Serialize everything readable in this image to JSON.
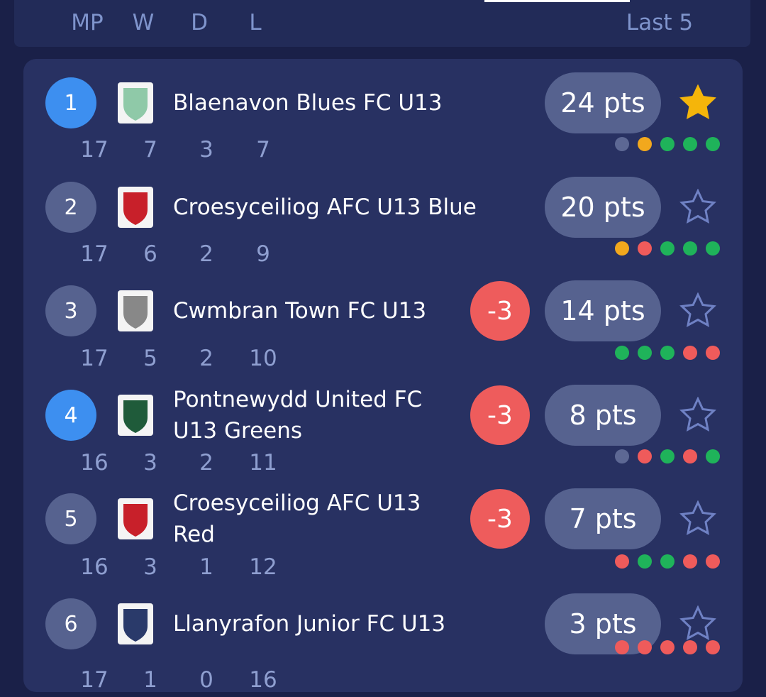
{
  "header": {
    "columns": [
      "MP",
      "W",
      "D",
      "L"
    ],
    "last5": "Last 5"
  },
  "rows": [
    {
      "position": "1",
      "team": "Blaenavon Blues FC U13",
      "points": "24 pts",
      "stats": [
        "17",
        "7",
        "3",
        "7"
      ],
      "form": [
        "#5d6894",
        "#f2a81d",
        "#1fb35a",
        "#1fb35a",
        "#1fb35a"
      ],
      "highlighted": true,
      "favourite": true
    },
    {
      "position": "2",
      "team": "Croesyceiliog AFC U13 Blue",
      "points": "20 pts",
      "stats": [
        "17",
        "6",
        "2",
        "9"
      ],
      "form": [
        "#f2a81d",
        "#ef5b5b",
        "#1fb35a",
        "#1fb35a",
        "#1fb35a"
      ],
      "highlighted": false,
      "favourite": false
    },
    {
      "position": "3",
      "team": "Cwmbran Town FC U13",
      "deduction": "-3",
      "points": "14 pts",
      "stats": [
        "17",
        "5",
        "2",
        "10"
      ],
      "form": [
        "#1fb35a",
        "#1fb35a",
        "#1fb35a",
        "#ef5b5b",
        "#ef5b5b"
      ],
      "highlighted": false,
      "favourite": false
    },
    {
      "position": "4",
      "team": "Pontnewydd United FC U13 Greens",
      "deduction": "-3",
      "points": "8 pts",
      "stats": [
        "16",
        "3",
        "2",
        "11"
      ],
      "form": [
        "#5d6894",
        "#ef5b5b",
        "#1fb35a",
        "#ef5b5b",
        "#1fb35a"
      ],
      "highlighted": true,
      "favourite": false
    },
    {
      "position": "5",
      "team": "Croesyceiliog AFC U13 Red",
      "deduction": "-3",
      "points": "7 pts",
      "stats": [
        "16",
        "3",
        "1",
        "12"
      ],
      "form": [
        "#ef5b5b",
        "#1fb35a",
        "#1fb35a",
        "#ef5b5b",
        "#ef5b5b"
      ],
      "highlighted": false,
      "favourite": false
    },
    {
      "position": "6",
      "team": "Llanyrafon Junior FC U13",
      "points": "3 pts",
      "stats": [
        "17",
        "1",
        "0",
        "16"
      ],
      "form": [
        "#ef5b5b",
        "#ef5b5b",
        "#ef5b5b",
        "#ef5b5b",
        "#ef5b5b"
      ],
      "highlighted": false,
      "favourite": false
    }
  ]
}
